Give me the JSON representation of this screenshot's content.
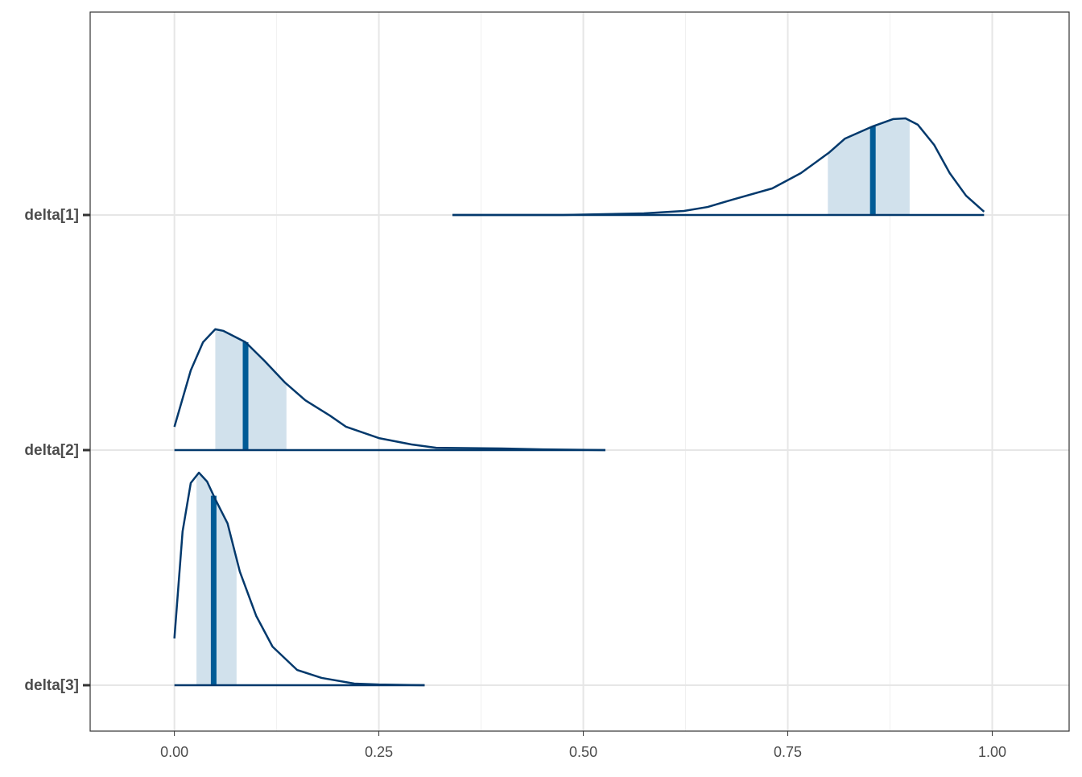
{
  "chart_data": {
    "type": "ridgeline",
    "categories": [
      "delta[1]",
      "delta[2]",
      "delta[3]"
    ],
    "xlim": [
      -0.103,
      1.094
    ],
    "xticks": [
      {
        "value": 0,
        "label": "0.00"
      },
      {
        "value": 0.25,
        "label": "0.25"
      },
      {
        "value": 0.5,
        "label": "0.50"
      },
      {
        "value": 0.75,
        "label": "0.75"
      },
      {
        "value": 1,
        "label": "1.00"
      }
    ],
    "xminorticks": [
      0.125,
      0.375,
      0.625,
      0.875
    ],
    "grid": true,
    "line_color": "#03396c",
    "interval_color": "#d1e1ec",
    "median_color": "#005b96",
    "series": [
      {
        "name": "delta[1]",
        "x": [
          0.34,
          0.475,
          0.574,
          0.623,
          0.652,
          0.682,
          0.731,
          0.766,
          0.8,
          0.82,
          0.854,
          0.879,
          0.894,
          0.909,
          0.929,
          0.948,
          0.968,
          0.99
        ],
        "density": [
          0,
          0,
          0.007,
          0.017,
          0.034,
          0.065,
          0.113,
          0.178,
          0.264,
          0.325,
          0.377,
          0.408,
          0.411,
          0.384,
          0.298,
          0.178,
          0.082,
          0.014
        ],
        "interval": [
          0.799,
          0.899
        ],
        "median": 0.854
      },
      {
        "name": "delta[2]",
        "x": [
          0,
          0.02,
          0.035,
          0.05,
          0.06,
          0.087,
          0.11,
          0.135,
          0.16,
          0.19,
          0.21,
          0.25,
          0.29,
          0.32,
          0.4,
          0.45,
          0.527
        ],
        "density": [
          0.099,
          0.339,
          0.459,
          0.514,
          0.507,
          0.459,
          0.38,
          0.288,
          0.212,
          0.147,
          0.099,
          0.051,
          0.024,
          0.01,
          0.007,
          0.003,
          0
        ],
        "interval": [
          0.05,
          0.137
        ],
        "median": 0.087
      },
      {
        "name": "delta[3]",
        "x": [
          0,
          0.01,
          0.02,
          0.03,
          0.04,
          0.05,
          0.065,
          0.08,
          0.1,
          0.12,
          0.15,
          0.18,
          0.22,
          0.25,
          0.306
        ],
        "density": [
          0.199,
          0.654,
          0.86,
          0.904,
          0.866,
          0.791,
          0.688,
          0.483,
          0.295,
          0.164,
          0.065,
          0.031,
          0.007,
          0.003,
          0
        ],
        "interval": [
          0.027,
          0.076
        ],
        "median": 0.048
      }
    ]
  }
}
